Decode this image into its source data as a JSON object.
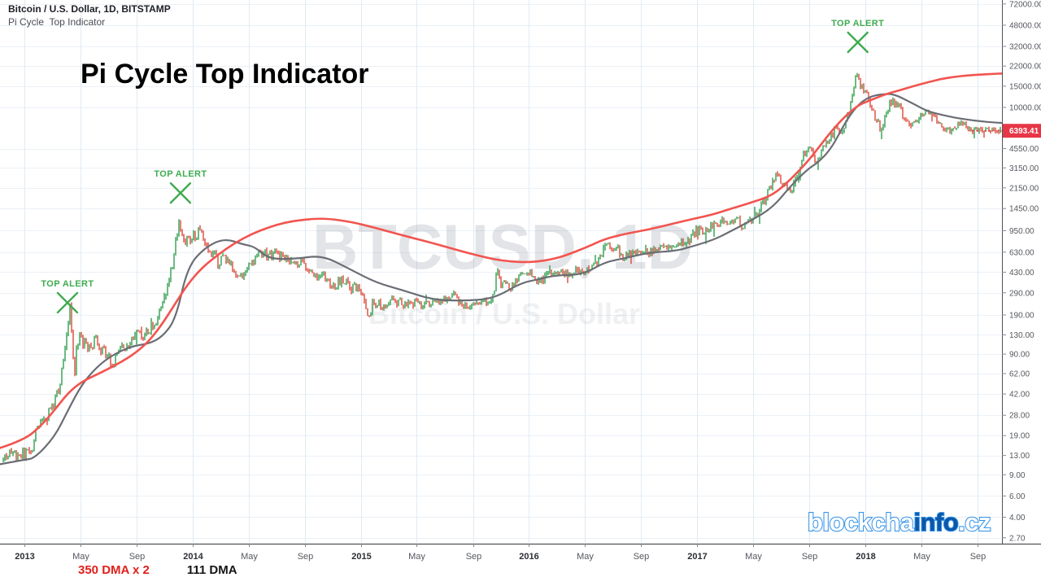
{
  "header": {
    "symbol": "Bitcoin / U.S. Dollar, 1D, BITSTAMP",
    "indicator": "Pi Cycle  Top Indicator"
  },
  "main_title": "Pi Cycle Top Indicator",
  "watermark": {
    "line1": "BTCUSD, 1D",
    "line2": "Bitcoin / U.S. Dollar"
  },
  "legend": {
    "dma350": "350 DMA x 2",
    "dma111": "111 DMA"
  },
  "logo": {
    "part1": "blockcha",
    "part2": "info",
    "part3": ".cz"
  },
  "price_tag": {
    "label": "6393.41",
    "value": 6393.41
  },
  "alerts": {
    "label": "TOP ALERT",
    "markers": [
      {
        "t": 2013.256,
        "price": 240
      },
      {
        "t": 2013.928,
        "price": 1950
      },
      {
        "t": 2017.955,
        "price": 34600
      }
    ]
  },
  "colors": {
    "up": "#2f9e4e",
    "down": "#de4839",
    "ma350": "#f2544f",
    "ma111": "#6a6d74",
    "alert_green": "#3fab4f",
    "grid_v": "#e1eaf4",
    "grid_h": "#ebf1f7",
    "axis_line": "#50535a",
    "tick_mark": "#84878c",
    "axis_text": "#55585e",
    "axis_text_major": "#2c2f35",
    "tag_bg": "#e73647",
    "tag_text": "#ffffff",
    "watermark": "#8a90a0"
  },
  "x_axis": {
    "ticks": [
      {
        "label": "2013",
        "t": 2013.0,
        "major": true
      },
      {
        "label": "May",
        "t": 2013.333,
        "major": false
      },
      {
        "label": "Sep",
        "t": 2013.667,
        "major": false
      },
      {
        "label": "2014",
        "t": 2014.0,
        "major": true
      },
      {
        "label": "May",
        "t": 2014.333,
        "major": false
      },
      {
        "label": "Sep",
        "t": 2014.667,
        "major": false
      },
      {
        "label": "2015",
        "t": 2015.0,
        "major": true
      },
      {
        "label": "May",
        "t": 2015.333,
        "major": false
      },
      {
        "label": "Sep",
        "t": 2015.667,
        "major": false
      },
      {
        "label": "2016",
        "t": 2016.0,
        "major": true
      },
      {
        "label": "May",
        "t": 2016.333,
        "major": false
      },
      {
        "label": "Sep",
        "t": 2016.667,
        "major": false
      },
      {
        "label": "2017",
        "t": 2017.0,
        "major": true
      },
      {
        "label": "May",
        "t": 2017.333,
        "major": false
      },
      {
        "label": "Sep",
        "t": 2017.667,
        "major": false
      },
      {
        "label": "2018",
        "t": 2018.0,
        "major": true
      },
      {
        "label": "May",
        "t": 2018.333,
        "major": false
      },
      {
        "label": "Sep",
        "t": 2018.667,
        "major": false
      }
    ]
  },
  "y_axis": {
    "ticks": [
      "72000.00",
      "48000.00",
      "32000.00",
      "22000.00",
      "15000.00",
      "10000.00",
      "4550.00",
      "3150.00",
      "2150.00",
      "1450.00",
      "950.00",
      "630.00",
      "430.00",
      "290.00",
      "190.00",
      "130.00",
      "90.00",
      "62.00",
      "42.00",
      "28.00",
      "19.00",
      "13.00",
      "9.00",
      "6.00",
      "4.00",
      "2.70"
    ]
  },
  "chart_data": {
    "type": "candlestick",
    "symbol": "BTCUSD",
    "timeframe": "1D",
    "scale": "log",
    "x_range_decimal_years": [
      2012.855,
      2018.81
    ],
    "y_range_usd": [
      2.7,
      72000
    ],
    "price_points": [
      [
        2012.855,
        13.2
      ],
      [
        2013.0,
        13.4
      ],
      [
        2013.04,
        14
      ],
      [
        2013.08,
        22
      ],
      [
        2013.12,
        25
      ],
      [
        2013.17,
        33
      ],
      [
        2013.21,
        47
      ],
      [
        2013.25,
        120
      ],
      [
        2013.268,
        235
      ],
      [
        2013.285,
        120
      ],
      [
        2013.295,
        55
      ],
      [
        2013.31,
        95
      ],
      [
        2013.33,
        125
      ],
      [
        2013.37,
        105
      ],
      [
        2013.42,
        115
      ],
      [
        2013.46,
        100
      ],
      [
        2013.5,
        88
      ],
      [
        2013.52,
        70
      ],
      [
        2013.56,
        95
      ],
      [
        2013.62,
        108
      ],
      [
        2013.67,
        128
      ],
      [
        2013.72,
        135
      ],
      [
        2013.76,
        152
      ],
      [
        2013.8,
        185
      ],
      [
        2013.84,
        280
      ],
      [
        2013.88,
        480
      ],
      [
        2013.9,
        800
      ],
      [
        2013.92,
        1180
      ],
      [
        2013.935,
        900
      ],
      [
        2013.95,
        700
      ],
      [
        2013.97,
        860
      ],
      [
        2014.0,
        820
      ],
      [
        2014.03,
        930
      ],
      [
        2014.06,
        850
      ],
      [
        2014.1,
        650
      ],
      [
        2014.13,
        590
      ],
      [
        2014.16,
        500
      ],
      [
        2014.2,
        580
      ],
      [
        2014.24,
        450
      ],
      [
        2014.27,
        360
      ],
      [
        2014.31,
        450
      ],
      [
        2014.35,
        490
      ],
      [
        2014.4,
        630
      ],
      [
        2014.44,
        590
      ],
      [
        2014.5,
        600
      ],
      [
        2014.55,
        580
      ],
      [
        2014.6,
        500
      ],
      [
        2014.65,
        490
      ],
      [
        2014.7,
        460
      ],
      [
        2014.75,
        390
      ],
      [
        2014.8,
        370
      ],
      [
        2014.85,
        340
      ],
      [
        2014.9,
        370
      ],
      [
        2014.95,
        320
      ],
      [
        2015.0,
        290
      ],
      [
        2015.03,
        220
      ],
      [
        2015.045,
        172
      ],
      [
        2015.07,
        230
      ],
      [
        2015.1,
        255
      ],
      [
        2015.13,
        225
      ],
      [
        2015.17,
        240
      ],
      [
        2015.22,
        245
      ],
      [
        2015.27,
        230
      ],
      [
        2015.33,
        237
      ],
      [
        2015.38,
        232
      ],
      [
        2015.44,
        237
      ],
      [
        2015.5,
        262
      ],
      [
        2015.55,
        280
      ],
      [
        2015.6,
        232
      ],
      [
        2015.65,
        230
      ],
      [
        2015.7,
        237
      ],
      [
        2015.75,
        245
      ],
      [
        2015.79,
        268
      ],
      [
        2015.81,
        460
      ],
      [
        2015.83,
        330
      ],
      [
        2015.86,
        350
      ],
      [
        2015.88,
        310
      ],
      [
        2015.92,
        355
      ],
      [
        2015.96,
        430
      ],
      [
        2016.0,
        434
      ],
      [
        2016.04,
        378
      ],
      [
        2016.08,
        372
      ],
      [
        2016.13,
        415
      ],
      [
        2016.18,
        418
      ],
      [
        2016.23,
        420
      ],
      [
        2016.29,
        447
      ],
      [
        2016.35,
        452
      ],
      [
        2016.41,
        530
      ],
      [
        2016.45,
        700
      ],
      [
        2016.47,
        770
      ],
      [
        2016.5,
        670
      ],
      [
        2016.53,
        660
      ],
      [
        2016.56,
        575
      ],
      [
        2016.6,
        600
      ],
      [
        2016.65,
        610
      ],
      [
        2016.7,
        615
      ],
      [
        2016.75,
        635
      ],
      [
        2016.8,
        690
      ],
      [
        2016.85,
        710
      ],
      [
        2016.9,
        740
      ],
      [
        2016.95,
        790
      ],
      [
        2017.0,
        970
      ],
      [
        2017.03,
        890
      ],
      [
        2017.07,
        1010
      ],
      [
        2017.12,
        1060
      ],
      [
        2017.17,
        1180
      ],
      [
        2017.2,
        1080
      ],
      [
        2017.24,
        1250
      ],
      [
        2017.27,
        1000
      ],
      [
        2017.31,
        1180
      ],
      [
        2017.35,
        1250
      ],
      [
        2017.4,
        1700
      ],
      [
        2017.44,
        2300
      ],
      [
        2017.47,
        2850
      ],
      [
        2017.5,
        2500
      ],
      [
        2017.53,
        2250
      ],
      [
        2017.56,
        2000
      ],
      [
        2017.6,
        2800
      ],
      [
        2017.64,
        4300
      ],
      [
        2017.67,
        4600
      ],
      [
        2017.7,
        3600
      ],
      [
        2017.73,
        4100
      ],
      [
        2017.77,
        4900
      ],
      [
        2017.8,
        5900
      ],
      [
        2017.83,
        7300
      ],
      [
        2017.86,
        6100
      ],
      [
        2017.89,
        8000
      ],
      [
        2017.92,
        11500
      ],
      [
        2017.945,
        19500
      ],
      [
        2017.96,
        15500
      ],
      [
        2017.975,
        14500
      ],
      [
        2018.0,
        13500
      ],
      [
        2018.02,
        11000
      ],
      [
        2018.05,
        9000
      ],
      [
        2018.08,
        7200
      ],
      [
        2018.1,
        6300
      ],
      [
        2018.13,
        10000
      ],
      [
        2018.16,
        11300
      ],
      [
        2018.2,
        9800
      ],
      [
        2018.24,
        8200
      ],
      [
        2018.27,
        7000
      ],
      [
        2018.3,
        7400
      ],
      [
        2018.33,
        8900
      ],
      [
        2018.36,
        9300
      ],
      [
        2018.4,
        8500
      ],
      [
        2018.44,
        7500
      ],
      [
        2018.47,
        6700
      ],
      [
        2018.5,
        6300
      ],
      [
        2018.53,
        6700
      ],
      [
        2018.56,
        7400
      ],
      [
        2018.6,
        7000
      ],
      [
        2018.63,
        6400
      ],
      [
        2018.66,
        6500
      ],
      [
        2018.7,
        6600
      ],
      [
        2018.73,
        6450
      ],
      [
        2018.76,
        6500
      ],
      [
        2018.79,
        6420
      ],
      [
        2018.81,
        6393.41
      ]
    ],
    "series": [
      {
        "id": "ma-350x2-line",
        "name": "350 DMA x 2",
        "color": "#f2544f",
        "width": 2.6,
        "points": [
          [
            2012.855,
            15
          ],
          [
            2013.0,
            17.5
          ],
          [
            2013.1,
            23
          ],
          [
            2013.18,
            31
          ],
          [
            2013.26,
            43
          ],
          [
            2013.34,
            53
          ],
          [
            2013.42,
            60
          ],
          [
            2013.5,
            68
          ],
          [
            2013.58,
            78
          ],
          [
            2013.66,
            92
          ],
          [
            2013.74,
            115
          ],
          [
            2013.82,
            160
          ],
          [
            2013.9,
            240
          ],
          [
            2013.97,
            340
          ],
          [
            2014.05,
            460
          ],
          [
            2014.15,
            600
          ],
          [
            2014.25,
            750
          ],
          [
            2014.35,
            890
          ],
          [
            2014.45,
            1010
          ],
          [
            2014.55,
            1110
          ],
          [
            2014.65,
            1170
          ],
          [
            2014.79,
            1205
          ],
          [
            2014.95,
            1120
          ],
          [
            2015.09,
            1000
          ],
          [
            2015.26,
            860
          ],
          [
            2015.42,
            755
          ],
          [
            2015.6,
            640
          ],
          [
            2015.75,
            565
          ],
          [
            2015.84,
            537
          ],
          [
            2015.95,
            520
          ],
          [
            2016.05,
            525
          ],
          [
            2016.15,
            555
          ],
          [
            2016.23,
            600
          ],
          [
            2016.35,
            700
          ],
          [
            2016.45,
            810
          ],
          [
            2016.58,
            900
          ],
          [
            2016.71,
            970
          ],
          [
            2016.85,
            1080
          ],
          [
            2016.96,
            1175
          ],
          [
            2017.1,
            1300
          ],
          [
            2017.19,
            1430
          ],
          [
            2017.32,
            1620
          ],
          [
            2017.45,
            1865
          ],
          [
            2017.56,
            2550
          ],
          [
            2017.66,
            3600
          ],
          [
            2017.72,
            4600
          ],
          [
            2017.8,
            6400
          ],
          [
            2017.88,
            8450
          ],
          [
            2017.96,
            10500
          ],
          [
            2018.04,
            11600
          ],
          [
            2018.13,
            13000
          ],
          [
            2018.21,
            13900
          ],
          [
            2018.3,
            15200
          ],
          [
            2018.37,
            16100
          ],
          [
            2018.45,
            17200
          ],
          [
            2018.53,
            17900
          ],
          [
            2018.61,
            18400
          ],
          [
            2018.69,
            18700
          ],
          [
            2018.76,
            18950
          ],
          [
            2018.82,
            19100
          ]
        ]
      },
      {
        "id": "ma-111-line",
        "name": "111 DMA",
        "color": "#6a6d74",
        "width": 2.2,
        "points": [
          [
            2012.855,
            11
          ],
          [
            2013.0,
            12
          ],
          [
            2013.06,
            12.3
          ],
          [
            2013.18,
            18.5
          ],
          [
            2013.26,
            31
          ],
          [
            2013.34,
            50
          ],
          [
            2013.42,
            68
          ],
          [
            2013.5,
            84
          ],
          [
            2013.58,
            97
          ],
          [
            2013.66,
            106
          ],
          [
            2013.74,
            110
          ],
          [
            2013.82,
            125
          ],
          [
            2013.9,
            175
          ],
          [
            2013.97,
            480
          ],
          [
            2014.08,
            700
          ],
          [
            2014.19,
            820
          ],
          [
            2014.3,
            730
          ],
          [
            2014.37,
            700
          ],
          [
            2014.45,
            555
          ],
          [
            2014.61,
            553
          ],
          [
            2014.77,
            595
          ],
          [
            2014.93,
            460
          ],
          [
            2015.09,
            352
          ],
          [
            2015.26,
            302
          ],
          [
            2015.42,
            255
          ],
          [
            2015.6,
            248
          ],
          [
            2015.79,
            259
          ],
          [
            2015.95,
            350
          ],
          [
            2016.06,
            376
          ],
          [
            2016.16,
            406
          ],
          [
            2016.32,
            410
          ],
          [
            2016.45,
            520
          ],
          [
            2016.55,
            553
          ],
          [
            2016.71,
            625
          ],
          [
            2016.87,
            645
          ],
          [
            2016.96,
            695
          ],
          [
            2017.1,
            800
          ],
          [
            2017.19,
            925
          ],
          [
            2017.32,
            1150
          ],
          [
            2017.45,
            1480
          ],
          [
            2017.56,
            2260
          ],
          [
            2017.66,
            3100
          ],
          [
            2017.72,
            3500
          ],
          [
            2017.8,
            4600
          ],
          [
            2017.88,
            7500
          ],
          [
            2017.95,
            10300
          ],
          [
            2018.02,
            12200
          ],
          [
            2018.1,
            12900
          ],
          [
            2018.17,
            12900
          ],
          [
            2018.27,
            11000
          ],
          [
            2018.37,
            9270
          ],
          [
            2018.45,
            8700
          ],
          [
            2018.53,
            8210
          ],
          [
            2018.61,
            7900
          ],
          [
            2018.69,
            7650
          ],
          [
            2018.76,
            7500
          ],
          [
            2018.82,
            7420
          ]
        ]
      }
    ]
  }
}
